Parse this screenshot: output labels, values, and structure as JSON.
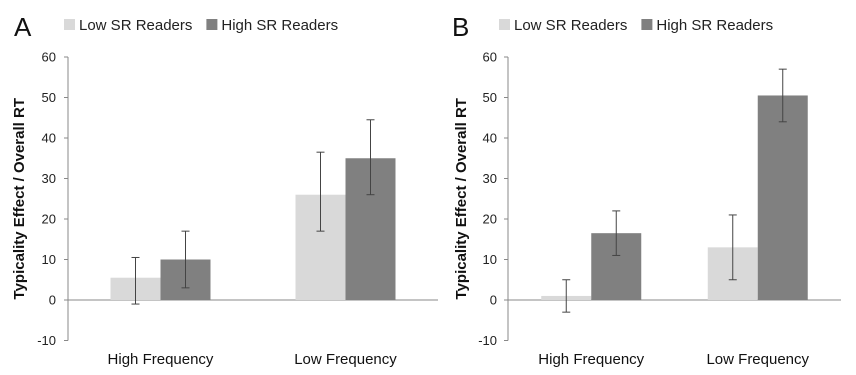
{
  "chart_data": [
    {
      "panel": "A",
      "type": "bar",
      "title": "",
      "xlabel": "",
      "ylabel": "Typicality Effect / Overall RT",
      "ylim": [
        -10,
        60
      ],
      "yticks": [
        "-10",
        "0",
        "10",
        "20",
        "30",
        "40",
        "50",
        "60"
      ],
      "categories": [
        "High Frequency",
        "Low Frequency"
      ],
      "legend_position": "top",
      "grid": false,
      "series": [
        {
          "name": "Low SR Readers",
          "color": "#d9d9d9",
          "values": [
            5.5,
            26
          ],
          "error": [
            [
              -1,
              10.5
            ],
            [
              17,
              36.5
            ]
          ]
        },
        {
          "name": "High SR Readers",
          "color": "#808080",
          "values": [
            10,
            35
          ],
          "error": [
            [
              3,
              17
            ],
            [
              26,
              44.5
            ]
          ]
        }
      ]
    },
    {
      "panel": "B",
      "type": "bar",
      "title": "",
      "xlabel": "",
      "ylabel": "Typicality Effect / Overall RT",
      "ylim": [
        -10,
        60
      ],
      "yticks": [
        "-10",
        "0",
        "10",
        "20",
        "30",
        "40",
        "50",
        "60"
      ],
      "categories": [
        "High Frequency",
        "Low Frequency"
      ],
      "legend_position": "top",
      "grid": false,
      "series": [
        {
          "name": "Low SR Readers",
          "color": "#d9d9d9",
          "values": [
            1,
            13
          ],
          "error": [
            [
              -3,
              5
            ],
            [
              5,
              21
            ]
          ]
        },
        {
          "name": "High SR Readers",
          "color": "#808080",
          "values": [
            16.5,
            50.5
          ],
          "error": [
            [
              11,
              22
            ],
            [
              44,
              57
            ]
          ]
        }
      ]
    }
  ]
}
